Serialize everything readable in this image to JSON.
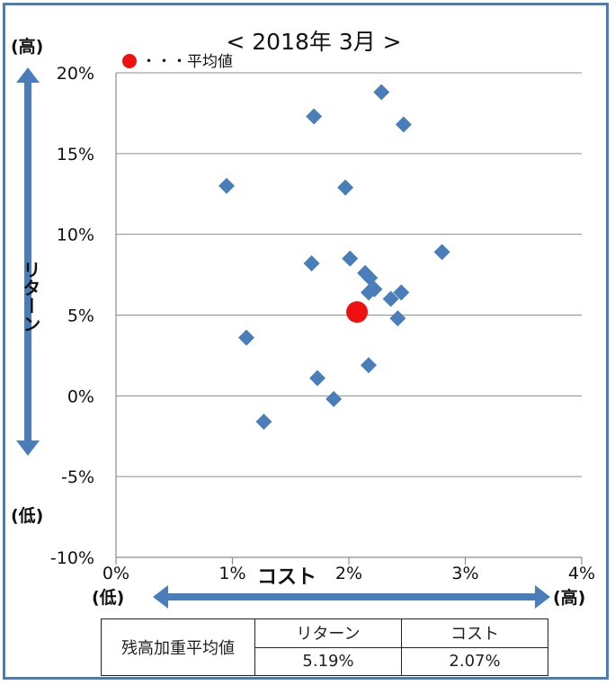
{
  "chart_data": {
    "type": "scatter",
    "title": "< 2018年 3月 >",
    "xlabel": "コスト",
    "ylabel": "リターン",
    "x_low_label": "(低)",
    "x_high_label": "(高)",
    "y_high_label": "(高)",
    "y_low_label": "(低)",
    "xlim": [
      0,
      4
    ],
    "ylim": [
      -10,
      20
    ],
    "x_ticks": [
      "0%",
      "1%",
      "2%",
      "3%",
      "4%"
    ],
    "y_ticks": [
      "20%",
      "15%",
      "10%",
      "5%",
      "0%",
      "-5%",
      "-10%"
    ],
    "grid": true,
    "legend": {
      "label": "・・・平均値",
      "position": "top-left"
    },
    "series": [
      {
        "type": "scatter",
        "color": "#4a7ebb",
        "marker": "diamond",
        "points": [
          {
            "x": 2.28,
            "y": 18.8
          },
          {
            "x": 1.7,
            "y": 17.3
          },
          {
            "x": 2.47,
            "y": 16.8
          },
          {
            "x": 0.95,
            "y": 13.0
          },
          {
            "x": 1.97,
            "y": 12.9
          },
          {
            "x": 2.8,
            "y": 8.9
          },
          {
            "x": 2.01,
            "y": 8.5
          },
          {
            "x": 1.68,
            "y": 8.2
          },
          {
            "x": 2.14,
            "y": 7.6
          },
          {
            "x": 2.18,
            "y": 7.3
          },
          {
            "x": 2.22,
            "y": 6.6
          },
          {
            "x": 2.17,
            "y": 6.4
          },
          {
            "x": 2.45,
            "y": 6.4
          },
          {
            "x": 2.36,
            "y": 6.0
          },
          {
            "x": 2.42,
            "y": 4.8
          },
          {
            "x": 1.12,
            "y": 3.6
          },
          {
            "x": 2.17,
            "y": 1.9
          },
          {
            "x": 1.73,
            "y": 1.1
          },
          {
            "x": 1.87,
            "y": -0.2
          },
          {
            "x": 1.27,
            "y": -1.6
          }
        ]
      },
      {
        "name": "平均値",
        "type": "scatter",
        "color": "#ee1111",
        "marker": "circle",
        "points": [
          {
            "x": 2.07,
            "y": 5.19
          }
        ]
      }
    ]
  },
  "summary_table": {
    "row_header": "残高加重平均値",
    "columns": [
      "リターン",
      "コスト"
    ],
    "values": [
      "5.19%",
      "2.07%"
    ]
  },
  "colors": {
    "frame": "#4a7ebb",
    "arrow": "#4a7ebb",
    "marker": "#4a7ebb",
    "average": "#ee1111",
    "grid": "#8c8c8c"
  }
}
